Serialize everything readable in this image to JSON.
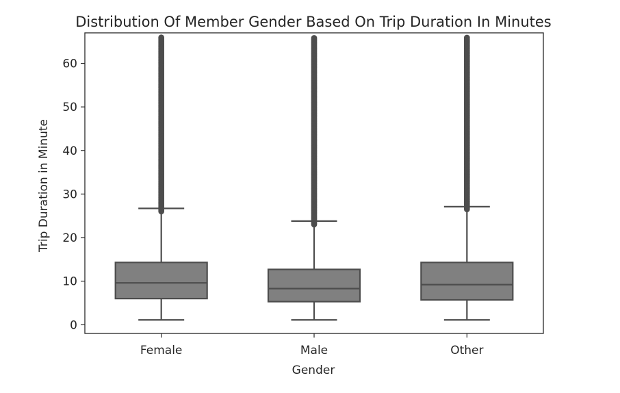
{
  "chart_data": {
    "type": "box",
    "title": "Distribution Of Member Gender Based On Trip Duration In Minutes",
    "xlabel": "Gender",
    "ylabel": "Trip Duration in Minute",
    "categories": [
      "Female",
      "Male",
      "Other"
    ],
    "ylim": [
      -2,
      67
    ],
    "yticks": [
      0,
      10,
      20,
      30,
      40,
      50,
      60
    ],
    "grid": false,
    "box_color": "#808080",
    "line_color": "#4d4d4d",
    "boxes": [
      {
        "category": "Female",
        "whisker_low": 1.1,
        "q1": 6.0,
        "median": 9.6,
        "q3": 14.3,
        "whisker_high": 26.7,
        "outliers_from": 26.0,
        "outliers_to": 66.0
      },
      {
        "category": "Male",
        "whisker_low": 1.1,
        "q1": 5.3,
        "median": 8.3,
        "q3": 12.7,
        "whisker_high": 23.8,
        "outliers_from": 23.0,
        "outliers_to": 66.0
      },
      {
        "category": "Other",
        "whisker_low": 1.1,
        "q1": 5.7,
        "median": 9.2,
        "q3": 14.3,
        "whisker_high": 27.1,
        "outliers_from": 26.5,
        "outliers_to": 66.0
      }
    ]
  }
}
